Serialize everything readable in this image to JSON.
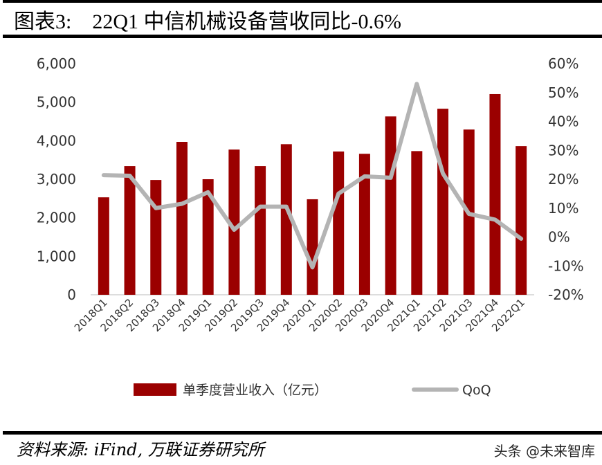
{
  "title": "图表3:    22Q1 中信机械设备营收同比-0.6%",
  "source": "资料来源: iFind, 万联证券研究所",
  "watermark": "头条 @未来智库",
  "chart_data": {
    "type": "bar+line",
    "categories": [
      "2018Q1",
      "2018Q2",
      "2018Q3",
      "2018Q4",
      "2019Q1",
      "2019Q2",
      "2019Q3",
      "2019Q4",
      "2020Q1",
      "2020Q2",
      "2020Q3",
      "2020Q4",
      "2021Q1",
      "2021Q2",
      "2021Q3",
      "2021Q4",
      "2022Q1"
    ],
    "series": [
      {
        "name": "单季度营业收入（亿元）",
        "type": "bar",
        "axis": "left",
        "color": "#9B0000",
        "values": [
          2530,
          3340,
          2980,
          3970,
          3000,
          3770,
          3340,
          3910,
          2480,
          3720,
          3660,
          4630,
          3730,
          4830,
          4290,
          5210,
          3860
        ]
      },
      {
        "name": "QoQ",
        "type": "line",
        "axis": "right",
        "color": "#B4B4B4",
        "values": [
          21.4,
          21.2,
          10.0,
          11.5,
          15.5,
          2.5,
          10.5,
          10.5,
          -10.5,
          15.0,
          21.0,
          20.5,
          53.0,
          22.0,
          8.0,
          6.0,
          -0.6
        ]
      }
    ],
    "left_axis": {
      "ylim": [
        0,
        6000
      ],
      "ticks": [
        "0",
        "1,000",
        "2,000",
        "3,000",
        "4,000",
        "5,000",
        "6,000"
      ]
    },
    "right_axis": {
      "ylim": [
        -20,
        60
      ],
      "ticks": [
        "-20%",
        "-10%",
        "0%",
        "10%",
        "20%",
        "30%",
        "40%",
        "50%",
        "60%"
      ]
    },
    "grid": false,
    "legend": "bottom"
  }
}
